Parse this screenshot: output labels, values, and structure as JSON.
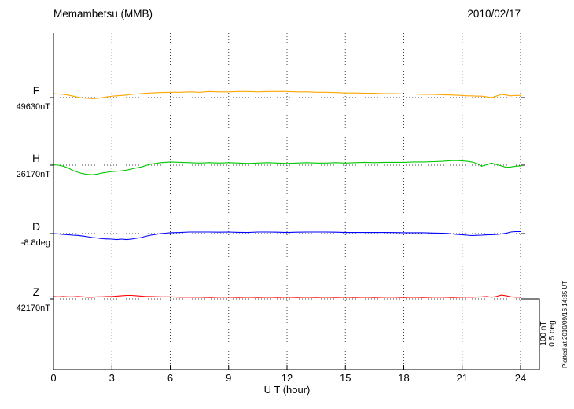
{
  "header": {
    "title": "Memambetsu (MMB)",
    "date": "2010/02/17"
  },
  "scale_bar": {
    "line1": "100 nT",
    "line2": "0.5 deg"
  },
  "footer_note": "Plotted at 2010/09/16 14:35 UT",
  "chart_data": {
    "type": "line",
    "title": "Memambetsu (MMB) magnetogram",
    "date": "2010/02/17",
    "xlabel": "U T (hour)",
    "x_range": [
      0,
      24
    ],
    "x_ticks": [
      0,
      3,
      6,
      9,
      12,
      15,
      18,
      21,
      24
    ],
    "grid": "dotted",
    "legend_position": "left",
    "scale_reference": {
      "nT_per_div": 100,
      "deg_per_div": 0.5
    },
    "series": [
      {
        "id": "F",
        "label": "F",
        "base_label": "49630nT",
        "base_value": 49630,
        "unit": "nT",
        "color": "#ffa500",
        "points": [
          [
            0,
            5.5
          ],
          [
            0.25,
            5
          ],
          [
            0.5,
            4.5
          ],
          [
            0.75,
            3.5
          ],
          [
            1,
            2
          ],
          [
            1.25,
            0.5
          ],
          [
            1.5,
            -0.5
          ],
          [
            1.75,
            -1
          ],
          [
            2,
            -1.5
          ],
          [
            2.25,
            -1
          ],
          [
            2.5,
            0
          ],
          [
            2.75,
            1
          ],
          [
            3,
            2
          ],
          [
            3.25,
            2.5
          ],
          [
            3.5,
            3
          ],
          [
            3.75,
            3.5
          ],
          [
            4,
            4.5
          ],
          [
            4.25,
            5
          ],
          [
            4.5,
            5.5
          ],
          [
            4.75,
            6
          ],
          [
            5,
            6.5
          ],
          [
            5.5,
            7
          ],
          [
            6,
            7.5
          ],
          [
            6.5,
            7.5
          ],
          [
            7,
            8
          ],
          [
            7.5,
            7.5
          ],
          [
            8,
            8.5
          ],
          [
            8.5,
            8
          ],
          [
            9,
            8
          ],
          [
            9.5,
            8.5
          ],
          [
            10,
            8.5
          ],
          [
            10.5,
            8
          ],
          [
            11,
            8.5
          ],
          [
            11.5,
            8.5
          ],
          [
            12,
            8.5
          ],
          [
            12.5,
            8
          ],
          [
            13,
            8
          ],
          [
            13.5,
            7.5
          ],
          [
            14,
            7.5
          ],
          [
            14.5,
            7
          ],
          [
            15,
            6.5
          ],
          [
            15.5,
            6.5
          ],
          [
            16,
            6
          ],
          [
            16.5,
            6
          ],
          [
            17,
            5.5
          ],
          [
            17.5,
            5.5
          ],
          [
            18,
            5
          ],
          [
            18.5,
            5
          ],
          [
            19,
            4.5
          ],
          [
            19.5,
            4.5
          ],
          [
            20,
            4
          ],
          [
            20.5,
            3.5
          ],
          [
            21,
            3
          ],
          [
            21.25,
            2.5
          ],
          [
            21.5,
            2.5
          ],
          [
            21.75,
            2
          ],
          [
            22,
            2
          ],
          [
            22.25,
            1
          ],
          [
            22.5,
            0
          ],
          [
            22.75,
            2
          ],
          [
            23,
            4.5
          ],
          [
            23.25,
            3.5
          ],
          [
            23.5,
            2.5
          ],
          [
            23.75,
            3
          ],
          [
            24,
            3
          ]
        ]
      },
      {
        "id": "H",
        "label": "H",
        "base_label": "26170nT",
        "base_value": 26170,
        "unit": "nT",
        "color": "#00c800",
        "points": [
          [
            0,
            0.5
          ],
          [
            0.25,
            0
          ],
          [
            0.5,
            -1.5
          ],
          [
            0.75,
            -4
          ],
          [
            1,
            -7.5
          ],
          [
            1.25,
            -10
          ],
          [
            1.5,
            -12
          ],
          [
            1.75,
            -13
          ],
          [
            2,
            -13.5
          ],
          [
            2.25,
            -12.5
          ],
          [
            2.5,
            -11
          ],
          [
            2.75,
            -10
          ],
          [
            3,
            -9
          ],
          [
            3.25,
            -8.5
          ],
          [
            3.5,
            -8
          ],
          [
            3.75,
            -7
          ],
          [
            4,
            -5.5
          ],
          [
            4.25,
            -4
          ],
          [
            4.5,
            -2.5
          ],
          [
            4.75,
            -0.5
          ],
          [
            5,
            1.5
          ],
          [
            5.25,
            2.5
          ],
          [
            5.5,
            3.5
          ],
          [
            5.75,
            4
          ],
          [
            6,
            4.5
          ],
          [
            6.5,
            4
          ],
          [
            7,
            3.5
          ],
          [
            7.5,
            3
          ],
          [
            8,
            3.5
          ],
          [
            8.5,
            3
          ],
          [
            9,
            3.5
          ],
          [
            9.5,
            3
          ],
          [
            10,
            2.5
          ],
          [
            10.5,
            3
          ],
          [
            11,
            3.5
          ],
          [
            11.5,
            3
          ],
          [
            12,
            2.5
          ],
          [
            12.5,
            3
          ],
          [
            13,
            3.5
          ],
          [
            13.5,
            3
          ],
          [
            14,
            3
          ],
          [
            14.5,
            3.5
          ],
          [
            15,
            3
          ],
          [
            15.5,
            3.5
          ],
          [
            16,
            4
          ],
          [
            16.5,
            3.5
          ],
          [
            17,
            4
          ],
          [
            17.5,
            4
          ],
          [
            18,
            4
          ],
          [
            18.5,
            4.5
          ],
          [
            19,
            4.5
          ],
          [
            19.5,
            5
          ],
          [
            20,
            5.5
          ],
          [
            20.25,
            6
          ],
          [
            20.5,
            6.5
          ],
          [
            20.75,
            6.5
          ],
          [
            21,
            6
          ],
          [
            21.25,
            5.5
          ],
          [
            21.5,
            4.5
          ],
          [
            21.75,
            2.5
          ],
          [
            22,
            -1.5
          ],
          [
            22.25,
            0.5
          ],
          [
            22.5,
            3
          ],
          [
            22.75,
            1
          ],
          [
            23,
            -1
          ],
          [
            23.25,
            -3
          ],
          [
            23.5,
            -2.5
          ],
          [
            23.75,
            -1.5
          ],
          [
            24,
            -1
          ]
        ]
      },
      {
        "id": "D",
        "label": "D",
        "base_label": "-8.8deg",
        "base_value": -8.8,
        "unit": "deg",
        "color": "#0000ff",
        "points": [
          [
            0,
            0
          ],
          [
            0.25,
            -0.002
          ],
          [
            0.5,
            -0.006
          ],
          [
            0.75,
            -0.008
          ],
          [
            1,
            -0.011
          ],
          [
            1.25,
            -0.013
          ],
          [
            1.5,
            -0.017
          ],
          [
            1.75,
            -0.022
          ],
          [
            2,
            -0.028
          ],
          [
            2.25,
            -0.031
          ],
          [
            2.5,
            -0.036
          ],
          [
            2.75,
            -0.038
          ],
          [
            3,
            -0.039
          ],
          [
            3.25,
            -0.042
          ],
          [
            3.5,
            -0.039
          ],
          [
            3.75,
            -0.042
          ],
          [
            4,
            -0.039
          ],
          [
            4.25,
            -0.033
          ],
          [
            4.5,
            -0.028
          ],
          [
            4.75,
            -0.019
          ],
          [
            5,
            -0.011
          ],
          [
            5.25,
            -0.006
          ],
          [
            5.5,
            0
          ],
          [
            5.75,
            0.003
          ],
          [
            6,
            0.006
          ],
          [
            6.5,
            0.008
          ],
          [
            7,
            0.011
          ],
          [
            7.5,
            0.011
          ],
          [
            8,
            0.011
          ],
          [
            8.5,
            0.01
          ],
          [
            9,
            0.011
          ],
          [
            9.5,
            0.009
          ],
          [
            10,
            0.008
          ],
          [
            10.5,
            0.011
          ],
          [
            11,
            0.011
          ],
          [
            11.5,
            0.01
          ],
          [
            12,
            0.008
          ],
          [
            12.5,
            0.01
          ],
          [
            13,
            0.011
          ],
          [
            13.5,
            0.011
          ],
          [
            14,
            0.011
          ],
          [
            14.5,
            0.01
          ],
          [
            15,
            0.008
          ],
          [
            15.5,
            0.008
          ],
          [
            16,
            0.008
          ],
          [
            16.5,
            0.008
          ],
          [
            17,
            0.008
          ],
          [
            17.5,
            0.007
          ],
          [
            18,
            0.006
          ],
          [
            18.5,
            0.006
          ],
          [
            19,
            0.006
          ],
          [
            19.5,
            0.004
          ],
          [
            20,
            0.003
          ],
          [
            20.25,
            0.001
          ],
          [
            20.5,
            -0.003
          ],
          [
            20.75,
            -0.006
          ],
          [
            21,
            -0.008
          ],
          [
            21.25,
            -0.011
          ],
          [
            21.5,
            -0.014
          ],
          [
            21.75,
            -0.012
          ],
          [
            22,
            -0.011
          ],
          [
            22.25,
            -0.009
          ],
          [
            22.5,
            -0.008
          ],
          [
            22.75,
            -0.006
          ],
          [
            23,
            -0.003
          ],
          [
            23.25,
            0.002
          ],
          [
            23.5,
            0.011
          ],
          [
            23.75,
            0.014
          ],
          [
            24,
            0.014
          ]
        ]
      },
      {
        "id": "Z",
        "label": "Z",
        "base_label": "42170nT",
        "base_value": 42170,
        "unit": "nT",
        "color": "#ff0000",
        "points": [
          [
            0,
            3.5
          ],
          [
            0.25,
            3
          ],
          [
            0.5,
            3.5
          ],
          [
            0.75,
            3
          ],
          [
            1,
            3
          ],
          [
            1.25,
            3.5
          ],
          [
            1.5,
            3
          ],
          [
            1.75,
            2.5
          ],
          [
            2,
            2.5
          ],
          [
            2.25,
            3
          ],
          [
            2.5,
            3
          ],
          [
            2.75,
            3.5
          ],
          [
            3,
            3.5
          ],
          [
            3.25,
            4
          ],
          [
            3.5,
            4.5
          ],
          [
            3.75,
            5
          ],
          [
            4,
            5
          ],
          [
            4.25,
            4.5
          ],
          [
            4.5,
            4
          ],
          [
            4.75,
            3.5
          ],
          [
            5,
            3.5
          ],
          [
            5.5,
            3
          ],
          [
            6,
            3
          ],
          [
            6.5,
            2.5
          ],
          [
            7,
            2.5
          ],
          [
            7.5,
            2.5
          ],
          [
            8,
            2
          ],
          [
            8.5,
            2.5
          ],
          [
            9,
            2.5
          ],
          [
            9.5,
            2
          ],
          [
            10,
            2.5
          ],
          [
            10.5,
            2
          ],
          [
            11,
            2.5
          ],
          [
            11.5,
            2
          ],
          [
            12,
            2.5
          ],
          [
            12.5,
            2
          ],
          [
            13,
            2.5
          ],
          [
            13.5,
            2
          ],
          [
            14,
            2.5
          ],
          [
            14.5,
            2
          ],
          [
            15,
            2.5
          ],
          [
            15.5,
            2
          ],
          [
            16,
            2.5
          ],
          [
            16.5,
            2
          ],
          [
            17,
            2.5
          ],
          [
            17.5,
            2.5
          ],
          [
            18,
            2
          ],
          [
            18.5,
            2.5
          ],
          [
            19,
            2
          ],
          [
            19.5,
            2.5
          ],
          [
            20,
            2.5
          ],
          [
            20.5,
            2
          ],
          [
            21,
            2.5
          ],
          [
            21.5,
            2.5
          ],
          [
            22,
            3
          ],
          [
            22.25,
            3.5
          ],
          [
            22.5,
            2.5
          ],
          [
            22.75,
            3.5
          ],
          [
            23,
            5.5
          ],
          [
            23.25,
            4.5
          ],
          [
            23.5,
            3
          ],
          [
            23.75,
            2.5
          ],
          [
            24,
            2.5
          ]
        ]
      }
    ]
  }
}
